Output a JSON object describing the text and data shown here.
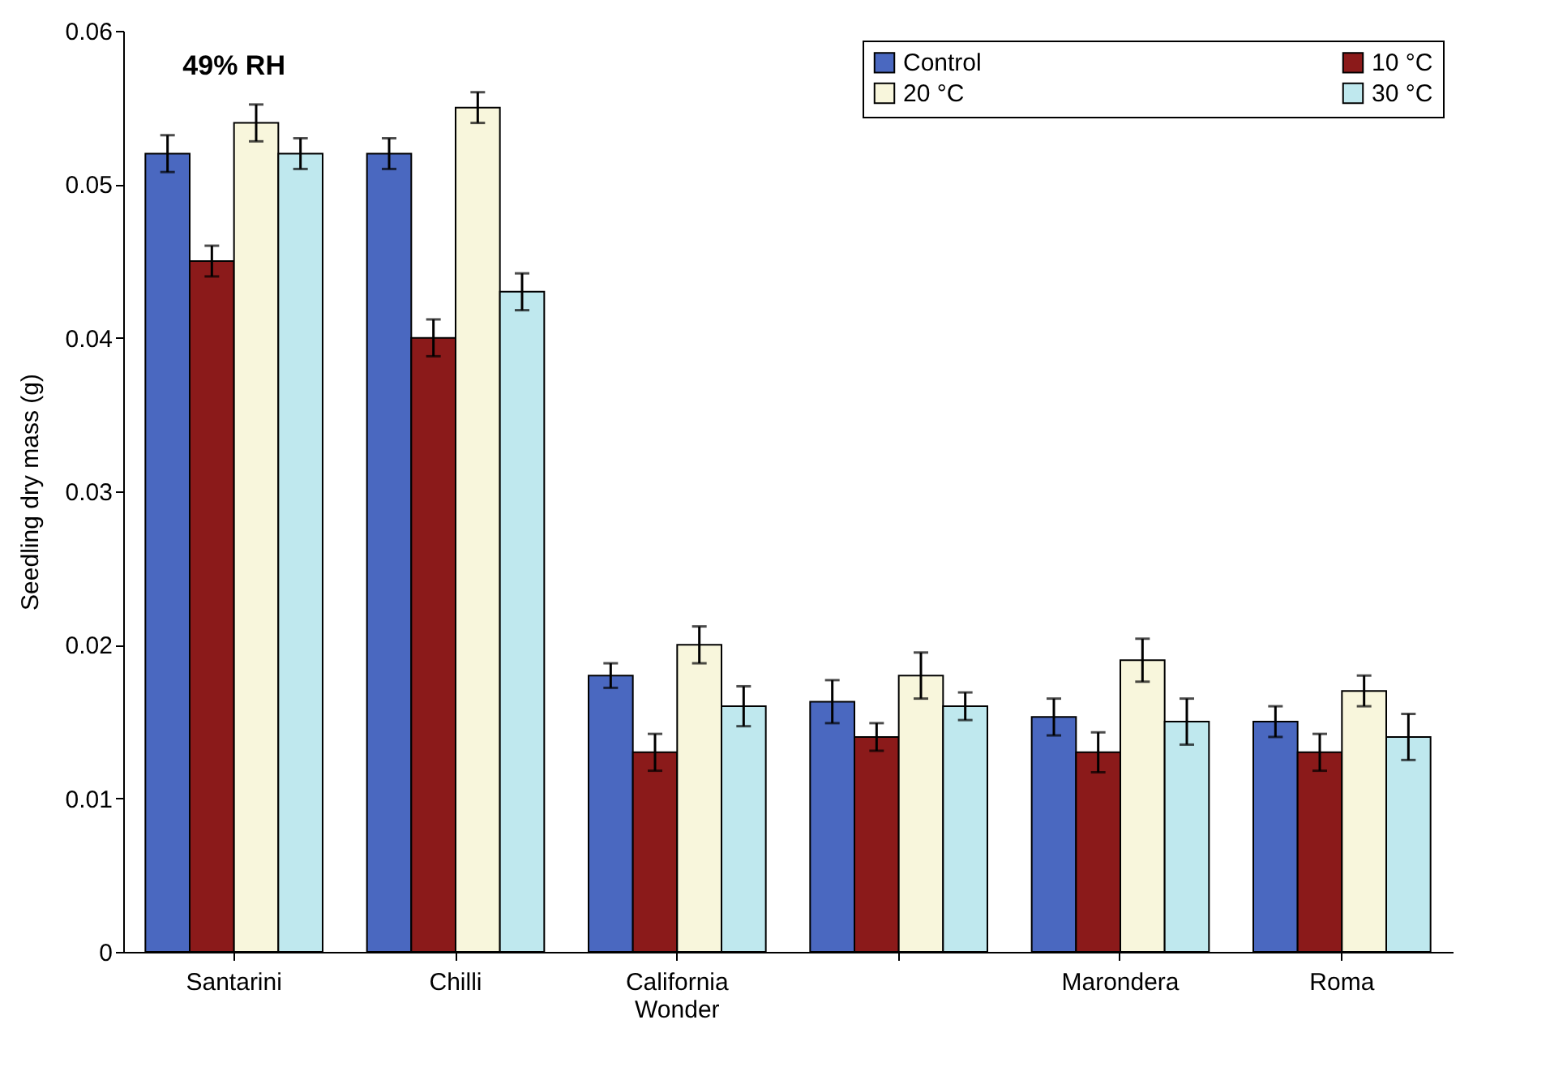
{
  "chart_data": {
    "type": "bar",
    "ylabel": "Seedling dry mass (g)",
    "categories": [
      "Santarini",
      "Chilli",
      "California Wonder",
      null,
      "Marondera",
      "Roma"
    ],
    "series": [
      {
        "name": "Control",
        "color": "#4a68c0",
        "values": [
          0.052,
          0.052,
          0.018,
          0.0163,
          0.0153,
          0.015
        ],
        "errors": [
          0.0012,
          0.001,
          0.0008,
          0.0014,
          0.0012,
          0.001
        ]
      },
      {
        "name": "10 °C",
        "color": "#8b1a1a",
        "values": [
          0.045,
          0.04,
          0.013,
          0.014,
          0.013,
          0.013
        ],
        "errors": [
          0.001,
          0.0012,
          0.0012,
          0.0009,
          0.0013,
          0.0012
        ]
      },
      {
        "name": "20 °C",
        "color": "#f8f6dc",
        "values": [
          0.054,
          0.055,
          0.02,
          0.018,
          0.019,
          0.017
        ],
        "errors": [
          0.0012,
          0.001,
          0.0012,
          0.0015,
          0.0014,
          0.001
        ]
      },
      {
        "name": "30 °C",
        "color": "#bfe8ee",
        "values": [
          0.052,
          0.043,
          0.016,
          0.016,
          0.015,
          0.014
        ],
        "errors": [
          0.001,
          0.0012,
          0.0013,
          0.0009,
          0.0015,
          0.0015
        ]
      }
    ],
    "ylim": [
      0,
      0.06
    ],
    "yticks": [
      0,
      0.01,
      0.02,
      0.03,
      0.04,
      0.05,
      0.06
    ],
    "annotations": [
      "49% RH"
    ],
    "legend": "top right",
    "grid": false
  }
}
